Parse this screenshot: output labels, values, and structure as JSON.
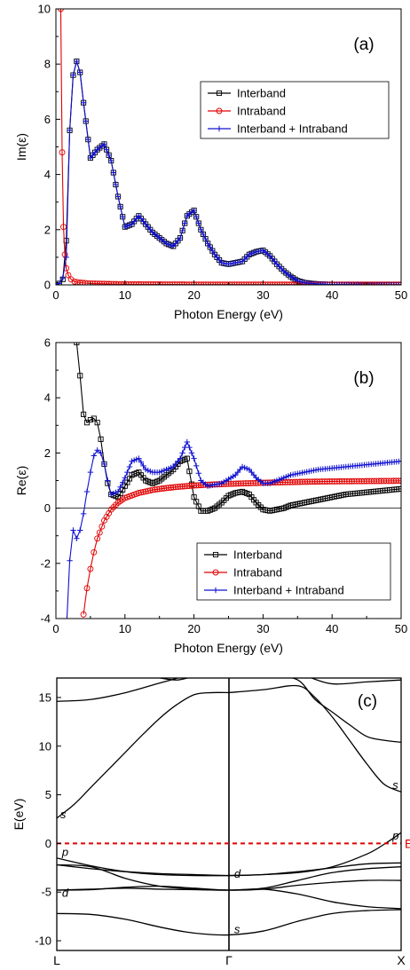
{
  "chart_data": [
    {
      "type": "line",
      "panel_label": "(a)",
      "xlabel": "Photon Energy (eV)",
      "ylabel": "Im(ε)",
      "xlim": [
        0,
        50
      ],
      "ylim": [
        0,
        10
      ],
      "xticks": [
        "0",
        "10",
        "20",
        "30",
        "40",
        "50"
      ],
      "yticks": [
        "0",
        "2",
        "4",
        "6",
        "8",
        "10"
      ],
      "legend_position": "upper-right",
      "series": [
        {
          "name": "Interband",
          "color": "#000000",
          "marker": "open-square",
          "x": [
            0,
            0.5,
            1,
            1.5,
            2,
            2.5,
            3,
            3.5,
            4,
            5,
            6,
            7,
            8,
            9,
            10,
            11,
            12,
            13,
            14,
            15,
            16,
            17,
            18,
            19,
            20,
            21,
            22,
            23,
            24,
            25,
            26,
            27,
            28,
            29,
            30,
            31,
            32,
            33,
            34,
            35,
            36,
            37,
            38,
            39,
            40,
            45,
            50
          ],
          "y": [
            0,
            0.05,
            0.2,
            1.6,
            5.6,
            7.6,
            8.1,
            7.7,
            6.6,
            4.6,
            4.9,
            5.1,
            4.5,
            3.2,
            2.1,
            2.2,
            2.5,
            2.2,
            1.9,
            1.7,
            1.5,
            1.4,
            1.7,
            2.5,
            2.7,
            2.0,
            1.5,
            1.1,
            0.8,
            0.75,
            0.8,
            0.85,
            1.1,
            1.2,
            1.25,
            1.05,
            0.75,
            0.5,
            0.3,
            0.15,
            0.08,
            0.05,
            0.03,
            0.02,
            0.01,
            0,
            0
          ]
        },
        {
          "name": "Intraband",
          "color": "#e00000",
          "marker": "open-circle",
          "x": [
            0.7,
            0.9,
            1.1,
            1.3,
            1.5,
            1.8,
            2.2,
            2.7,
            3.5,
            5,
            8,
            12,
            20,
            30,
            40,
            50
          ],
          "y": [
            10,
            4.8,
            2.1,
            1.1,
            0.6,
            0.35,
            0.2,
            0.12,
            0.08,
            0.05,
            0.03,
            0.02,
            0.01,
            0.01,
            0.01,
            0.01
          ]
        },
        {
          "name": "Interband + Intraband",
          "color": "#1010d0",
          "marker": "plus",
          "x": [
            0,
            0.5,
            1,
            1.5,
            2,
            2.5,
            3,
            3.5,
            4,
            5,
            6,
            7,
            8,
            9,
            10,
            11,
            12,
            13,
            14,
            15,
            16,
            17,
            18,
            19,
            20,
            21,
            22,
            23,
            24,
            25,
            26,
            27,
            28,
            29,
            30,
            31,
            32,
            33,
            34,
            35,
            36,
            37,
            38,
            39,
            40,
            45,
            50
          ],
          "y": [
            0,
            0.05,
            0.25,
            1.0,
            5.6,
            7.6,
            8.1,
            7.7,
            6.6,
            4.6,
            4.9,
            5.1,
            4.5,
            3.2,
            2.1,
            2.2,
            2.5,
            2.2,
            1.9,
            1.7,
            1.5,
            1.4,
            1.7,
            2.5,
            2.7,
            2.0,
            1.5,
            1.1,
            0.8,
            0.75,
            0.8,
            0.85,
            1.1,
            1.2,
            1.25,
            1.05,
            0.75,
            0.5,
            0.3,
            0.15,
            0.08,
            0.05,
            0.03,
            0.02,
            0.01,
            0,
            0
          ]
        }
      ]
    },
    {
      "type": "line",
      "panel_label": "(b)",
      "xlabel": "Photon Energy (eV)",
      "ylabel": "Re(ε)",
      "xlim": [
        0,
        50
      ],
      "ylim": [
        -4,
        6
      ],
      "xticks": [
        "0",
        "10",
        "20",
        "30",
        "40",
        "50"
      ],
      "yticks": [
        "-4",
        "-2",
        "0",
        "2",
        "4",
        "6"
      ],
      "legend_position": "lower-right",
      "series": [
        {
          "name": "Interband",
          "color": "#000000",
          "marker": "open-square",
          "x": [
            3,
            3.5,
            4,
            4.5,
            5,
            5.5,
            6,
            6.5,
            7,
            7.5,
            8,
            9,
            10,
            11,
            12,
            13,
            14,
            15,
            16,
            17,
            18,
            19,
            20,
            21,
            22,
            23,
            24,
            25,
            26,
            27,
            28,
            29,
            30,
            31,
            32,
            33,
            34,
            35,
            36,
            38,
            40,
            42,
            44,
            46,
            48,
            50
          ],
          "y": [
            6,
            4.8,
            3.4,
            3.1,
            3.2,
            3.25,
            3.1,
            2.5,
            1.6,
            0.9,
            0.5,
            0.4,
            0.8,
            1.2,
            1.3,
            1.0,
            0.9,
            1.0,
            1.2,
            1.4,
            1.7,
            1.8,
            0.4,
            -0.1,
            -0.1,
            0.0,
            0.2,
            0.45,
            0.55,
            0.6,
            0.5,
            0.2,
            -0.05,
            -0.1,
            -0.05,
            0.0,
            0.1,
            0.15,
            0.2,
            0.3,
            0.4,
            0.5,
            0.55,
            0.6,
            0.65,
            0.7
          ]
        },
        {
          "name": "Intraband",
          "color": "#e00000",
          "marker": "open-circle",
          "x": [
            4,
            4.5,
            5,
            5.5,
            6,
            7,
            8,
            9,
            10,
            12,
            14,
            16,
            18,
            20,
            22,
            25,
            30,
            35,
            40,
            45,
            50
          ],
          "y": [
            -3.85,
            -2.9,
            -2.2,
            -1.6,
            -1.1,
            -0.45,
            -0.05,
            0.2,
            0.37,
            0.55,
            0.66,
            0.73,
            0.78,
            0.82,
            0.85,
            0.88,
            0.92,
            0.95,
            0.97,
            0.98,
            0.99
          ]
        },
        {
          "name": "Interband + Intraband",
          "color": "#1010d0",
          "marker": "plus",
          "x": [
            1.6,
            2,
            2.5,
            3,
            3.5,
            4,
            4.5,
            5,
            5.5,
            6,
            6.5,
            7,
            7.5,
            8,
            9,
            10,
            11,
            12,
            13,
            14,
            15,
            16,
            17,
            18,
            19,
            20,
            21,
            22,
            24,
            26,
            27,
            28,
            29,
            30,
            31,
            32,
            34,
            36,
            38,
            40,
            42,
            44,
            46,
            48,
            50
          ],
          "y": [
            -4,
            -1.9,
            -0.8,
            -1.1,
            -0.8,
            -0.2,
            0.6,
            1.3,
            1.9,
            2.1,
            2.0,
            1.6,
            1.0,
            0.5,
            0.6,
            1.1,
            1.7,
            1.8,
            1.4,
            1.3,
            1.3,
            1.4,
            1.5,
            1.8,
            2.4,
            1.8,
            1.0,
            0.8,
            0.9,
            1.2,
            1.5,
            1.4,
            1.1,
            0.9,
            0.9,
            1.0,
            1.2,
            1.3,
            1.4,
            1.45,
            1.5,
            1.55,
            1.6,
            1.65,
            1.7
          ]
        }
      ]
    },
    {
      "type": "line",
      "panel_label": "(c)",
      "ylabel": "E(eV)",
      "ylim": [
        -11,
        17
      ],
      "yticks": [
        "-10",
        "-5",
        "0",
        "5",
        "10",
        "15"
      ],
      "kpoints": [
        "L",
        "Γ",
        "X"
      ],
      "fermi_label": "E",
      "fermi_energy": 0,
      "annotations": [
        {
          "text": "s",
          "k": 0.02,
          "e": 2.6
        },
        {
          "text": "p",
          "k": 0.03,
          "e": -1.3
        },
        {
          "text": "d",
          "k": 0.03,
          "e": -5.5
        },
        {
          "text": "d",
          "k": 1.03,
          "e": -3.5
        },
        {
          "text": "s",
          "k": 1.03,
          "e": -9.2
        },
        {
          "text": "s",
          "k": 1.95,
          "e": 5.6
        },
        {
          "text": "p",
          "k": 1.95,
          "e": 0.4
        }
      ],
      "bands": [
        {
          "k": [
            0,
            0.2,
            0.4,
            0.6,
            0.75,
            0.85,
            1.0,
            1.2,
            1.4,
            1.6,
            1.8,
            2.0
          ],
          "e": [
            -7.2,
            -7.3,
            -7.8,
            -8.6,
            -9.1,
            -9.3,
            -9.4,
            -9.0,
            -8.0,
            -7.2,
            -6.9,
            -6.8
          ]
        },
        {
          "k": [
            0,
            0.2,
            0.4,
            0.6,
            0.8,
            1.0,
            1.2,
            1.4,
            1.6,
            1.8,
            2.0
          ],
          "e": [
            -4.8,
            -4.7,
            -4.6,
            -4.7,
            -4.75,
            -4.8,
            -4.7,
            -5.2,
            -6.0,
            -6.5,
            -6.7
          ]
        },
        {
          "k": [
            0,
            0.2,
            0.4,
            0.6,
            0.8,
            1.0,
            1.2,
            1.4,
            1.6,
            1.8,
            2.0
          ],
          "e": [
            -4.8,
            -4.75,
            -4.5,
            -4.4,
            -4.6,
            -4.8,
            -4.7,
            -4.3,
            -4.0,
            -3.8,
            -3.8
          ]
        },
        {
          "k": [
            0,
            0.2,
            0.4,
            0.6,
            0.8,
            1.0,
            1.2,
            1.4,
            1.6,
            1.8,
            2.0
          ],
          "e": [
            -2.2,
            -2.4,
            -3.6,
            -4.4,
            -4.7,
            -4.8,
            -4.6,
            -3.8,
            -3.0,
            -2.6,
            -2.4
          ]
        },
        {
          "k": [
            0,
            0.2,
            0.4,
            0.6,
            0.8,
            1.0,
            1.2,
            1.4,
            1.6,
            1.8,
            2.0
          ],
          "e": [
            -2.2,
            -2.6,
            -2.9,
            -3.1,
            -3.2,
            -3.3,
            -3.2,
            -2.9,
            -2.5,
            -2.1,
            -2.0
          ]
        },
        {
          "k": [
            0,
            0.2,
            0.4,
            0.6,
            0.8,
            1.0,
            1.2,
            1.4,
            1.6,
            1.8,
            1.9,
            2.0
          ],
          "e": [
            -1.5,
            -2.3,
            -2.9,
            -3.2,
            -3.3,
            -3.3,
            -3.2,
            -3.0,
            -2.4,
            -1.1,
            -0.1,
            1.1
          ]
        },
        {
          "k": [
            0,
            0.1,
            0.2,
            0.3,
            0.4,
            0.5,
            0.6,
            0.7,
            0.8,
            0.9,
            1.0
          ],
          "e": [
            2.6,
            4.0,
            5.8,
            7.6,
            9.4,
            11.2,
            12.9,
            14.3,
            15.3,
            15.5,
            15.5
          ]
        },
        {
          "k": [
            1.0,
            1.2,
            1.4,
            1.5,
            1.6,
            1.7,
            1.8,
            1.9,
            2.0
          ],
          "e": [
            15.5,
            15.8,
            16.2,
            15.0,
            13.0,
            10.6,
            8.2,
            6.1,
            5.3
          ]
        },
        {
          "k": [
            0,
            0.2,
            0.4,
            0.6,
            0.7,
            0.75
          ],
          "e": [
            14.6,
            14.8,
            15.5,
            16.5,
            17.0,
            17.5
          ]
        },
        {
          "k": [
            1.25,
            1.4,
            1.5,
            1.6,
            1.7,
            1.8,
            1.9,
            2.0
          ],
          "e": [
            17.3,
            16.8,
            14.8,
            13.5,
            12.2,
            11.0,
            10.6,
            10.4
          ]
        },
        {
          "k": [
            1.45,
            1.6,
            1.8,
            2.0
          ],
          "e": [
            17.2,
            16.4,
            16.6,
            16.8
          ]
        },
        {
          "k": [
            0.6,
            0.7,
            0.8
          ],
          "e": [
            17.0,
            16.8,
            17.2
          ]
        }
      ]
    }
  ]
}
